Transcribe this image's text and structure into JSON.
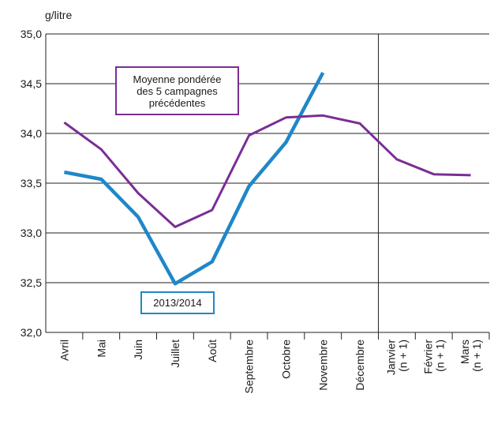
{
  "chart_data": {
    "type": "line",
    "title": "",
    "ylabel": "g/litre",
    "xlabel": "",
    "ylim": [
      32.0,
      35.0
    ],
    "yticks": [
      "32,0",
      "32,5",
      "33,0",
      "33,5",
      "34,0",
      "34,5",
      "35,0"
    ],
    "grid": true,
    "categories": [
      "Avril",
      "Mai",
      "Juin",
      "Juillet",
      "Août",
      "Septembre",
      "Octobre",
      "Novembre",
      "Décembre",
      "Janvier (n + 1)",
      "Février (n + 1)",
      "Mars (n + 1)"
    ],
    "category_lines": [
      [
        "Avril"
      ],
      [
        "Mai"
      ],
      [
        "Juin"
      ],
      [
        "Juillet"
      ],
      [
        "Août"
      ],
      [
        "Septembre"
      ],
      [
        "Octobre"
      ],
      [
        "Novembre"
      ],
      [
        "Décembre"
      ],
      [
        "Janvier",
        "(n + 1)"
      ],
      [
        "Février",
        "(n + 1)"
      ],
      [
        "Mars",
        "(n + 1)"
      ]
    ],
    "series": [
      {
        "name": "2013/2014",
        "color": "#1f87c9",
        "values": [
          33.61,
          33.54,
          33.16,
          32.49,
          32.71,
          33.47,
          33.91,
          34.61,
          null,
          null,
          null,
          null
        ]
      },
      {
        "name": "Moyenne pondérée des 5 campagnes précédentes",
        "name_lines": [
          "Moyenne pondérée",
          "des 5 campagnes",
          "précédentes"
        ],
        "color": "#7a2e95",
        "values": [
          34.11,
          33.84,
          33.4,
          33.06,
          33.23,
          33.98,
          34.16,
          34.18,
          34.1,
          33.74,
          33.59,
          33.58
        ]
      }
    ],
    "divider_after": "Décembre"
  }
}
